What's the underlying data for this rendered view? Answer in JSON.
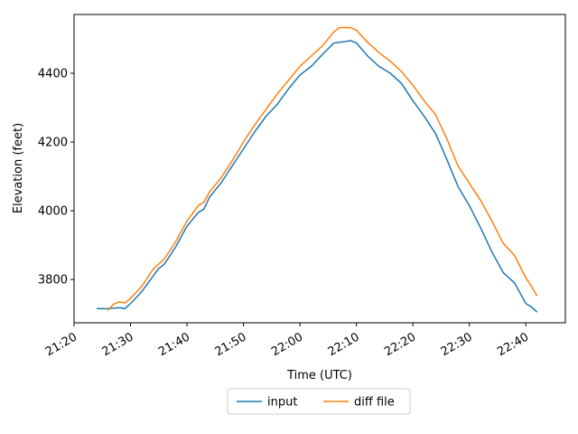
{
  "chart_data": {
    "type": "line",
    "x_label": "Time (UTC)",
    "y_label": "Elevation (feet)",
    "xlim": [
      "21:20",
      "22:47"
    ],
    "xticks": [
      "21:20",
      "21:30",
      "21:40",
      "21:50",
      "22:00",
      "22:10",
      "22:20",
      "22:30",
      "22:40"
    ],
    "ylim": [
      3674,
      4571
    ],
    "yticks": [
      3800,
      4000,
      4200,
      4400
    ],
    "grid": false,
    "legend": "below",
    "series": [
      {
        "name": "input",
        "color": "#1f77b4",
        "x": [
          "21:24",
          "21:26",
          "21:28",
          "21:29",
          "21:30",
          "21:32",
          "21:34",
          "21:35",
          "21:36",
          "21:38",
          "21:40",
          "21:42",
          "21:43",
          "21:44",
          "21:46",
          "21:48",
          "21:50",
          "21:52",
          "21:54",
          "21:56",
          "21:58",
          "22:00",
          "22:02",
          "22:04",
          "22:06",
          "22:08",
          "22:09",
          "22:10",
          "22:12",
          "22:14",
          "22:16",
          "22:18",
          "22:20",
          "22:22",
          "22:24",
          "22:26",
          "22:28",
          "22:30",
          "22:32",
          "22:34",
          "22:36",
          "22:38",
          "22:39",
          "22:40",
          "22:41",
          "22:42"
        ],
        "values": [
          3715,
          3715,
          3718,
          3715,
          3730,
          3765,
          3810,
          3832,
          3845,
          3895,
          3955,
          3995,
          4005,
          4040,
          4080,
          4130,
          4180,
          4230,
          4275,
          4310,
          4355,
          4395,
          4420,
          4455,
          4488,
          4492,
          4495,
          4488,
          4450,
          4420,
          4400,
          4370,
          4320,
          4275,
          4225,
          4150,
          4070,
          4015,
          3950,
          3880,
          3820,
          3790,
          3760,
          3730,
          3720,
          3705
        ]
      },
      {
        "name": "diff file",
        "color": "#ff7f0e",
        "x": [
          "21:26",
          "21:27",
          "21:28",
          "21:29",
          "21:30",
          "21:32",
          "21:34",
          "21:36",
          "21:38",
          "21:40",
          "21:42",
          "21:43",
          "21:44",
          "21:46",
          "21:48",
          "21:50",
          "21:52",
          "21:54",
          "21:56",
          "21:58",
          "22:00",
          "22:02",
          "22:04",
          "22:06",
          "22:07",
          "22:09",
          "22:10",
          "22:12",
          "22:14",
          "22:16",
          "22:18",
          "22:20",
          "22:22",
          "22:24",
          "22:26",
          "22:28",
          "22:30",
          "22:32",
          "22:34",
          "22:36",
          "22:38",
          "22:40",
          "22:41",
          "22:42"
        ],
        "values": [
          3710,
          3728,
          3735,
          3732,
          3745,
          3780,
          3830,
          3860,
          3910,
          3970,
          4015,
          4025,
          4055,
          4095,
          4145,
          4200,
          4250,
          4295,
          4340,
          4380,
          4420,
          4450,
          4480,
          4520,
          4533,
          4533,
          4525,
          4490,
          4460,
          4435,
          4405,
          4365,
          4320,
          4280,
          4210,
          4130,
          4080,
          4030,
          3970,
          3905,
          3870,
          3805,
          3780,
          3752
        ]
      }
    ]
  }
}
